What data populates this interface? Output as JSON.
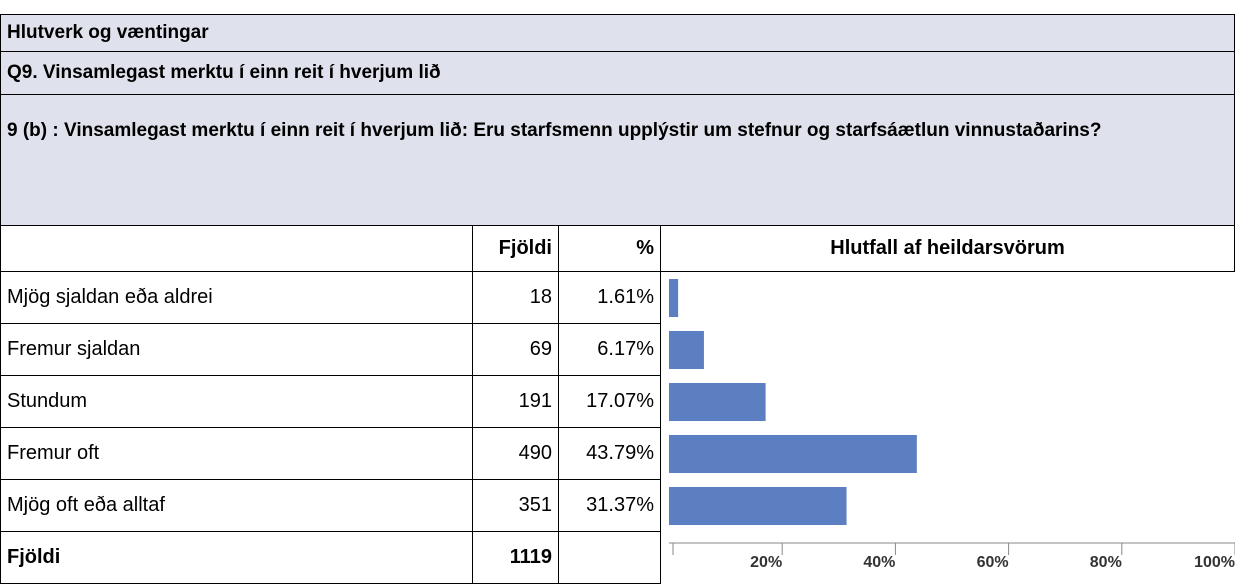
{
  "header": {
    "section": "Hlutverk og væntingar",
    "question": "Q9. Vinsamlegast merktu í einn reit í hverjum lið",
    "subquestion": "9 (b) : Vinsamlegast merktu í einn reit í hverjum lið: Eru starfsmenn upplýstir um stefnur og starfsáætlun vinnustaðarins?"
  },
  "table": {
    "columns": [
      "Fjöldi",
      "%",
      "Hlutfall af heildarsvörum"
    ],
    "rows": [
      {
        "label": "Mjög sjaldan eða aldrei",
        "count": 18,
        "percent": 1.61,
        "percent_label": "1.61%"
      },
      {
        "label": "Fremur sjaldan",
        "count": 69,
        "percent": 6.17,
        "percent_label": "6.17%"
      },
      {
        "label": "Stundum",
        "count": 191,
        "percent": 17.07,
        "percent_label": "17.07%"
      },
      {
        "label": "Fremur oft",
        "count": 490,
        "percent": 43.79,
        "percent_label": "43.79%"
      },
      {
        "label": "Mjög oft eða alltaf",
        "count": 351,
        "percent": 31.37,
        "percent_label": "31.37%"
      }
    ],
    "total": {
      "label": "Fjöldi",
      "count": 1119
    },
    "bar_color": "#5b7fc0",
    "xlim": [
      0,
      100
    ],
    "xticks": [
      {
        "value": 20,
        "label": "20%"
      },
      {
        "value": 40,
        "label": "40%"
      },
      {
        "value": 60,
        "label": "60%"
      },
      {
        "value": 80,
        "label": "80%"
      },
      {
        "value": 100,
        "label": "100%"
      }
    ]
  }
}
